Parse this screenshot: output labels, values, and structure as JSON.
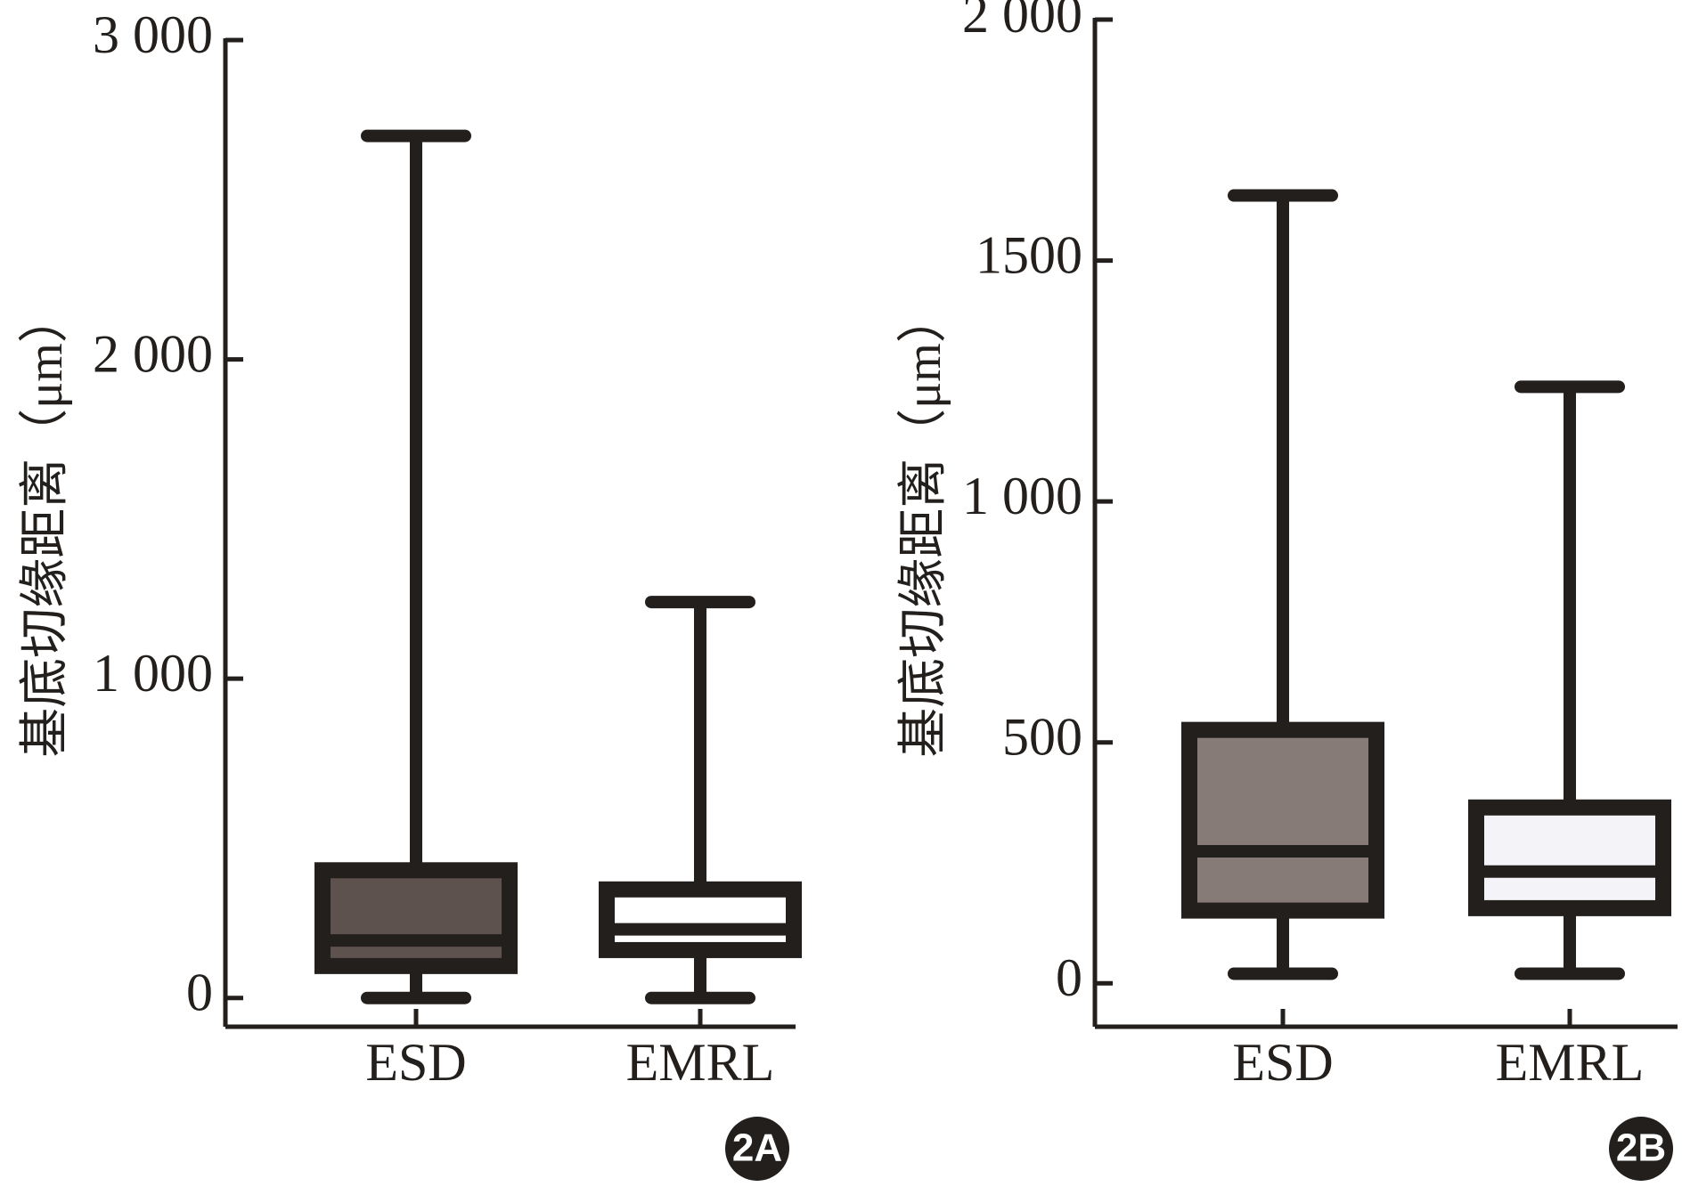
{
  "chart_data": [
    {
      "type": "box",
      "panel_label": "2A",
      "y_label": "基底切缘距离（μm）",
      "categories": [
        "ESD",
        "EMRL"
      ],
      "min": [
        0,
        0
      ],
      "q1": [
        100,
        150
      ],
      "median": [
        180,
        215
      ],
      "q3": [
        400,
        340
      ],
      "max": [
        2700,
        1240
      ],
      "colors": [
        "#5e524e",
        "#ffffff"
      ],
      "ylim": [
        -90,
        3000
      ],
      "yticks": [
        0,
        {
          "value": 1000,
          "label": "1 000"
        },
        {
          "value": 2000,
          "label": "2 000"
        },
        {
          "value": 3000,
          "label": "3 000"
        }
      ]
    },
    {
      "type": "box",
      "panel_label": "2B",
      "y_label": "基底切缘距离（μm）",
      "categories": [
        "ESD",
        "EMRL"
      ],
      "min": [
        20,
        20
      ],
      "q1": [
        151,
        156
      ],
      "median": [
        274,
        232
      ],
      "q3": [
        526,
        365
      ],
      "max": [
        1635,
        1238
      ],
      "colors": [
        "#877b77",
        "#f4f4f8"
      ],
      "ylim": [
        -90,
        2000
      ],
      "yticks": [
        0,
        500,
        {
          "value": 1000,
          "label": "1 000"
        },
        1500,
        {
          "value": 2000,
          "label": "2 000"
        }
      ]
    }
  ]
}
